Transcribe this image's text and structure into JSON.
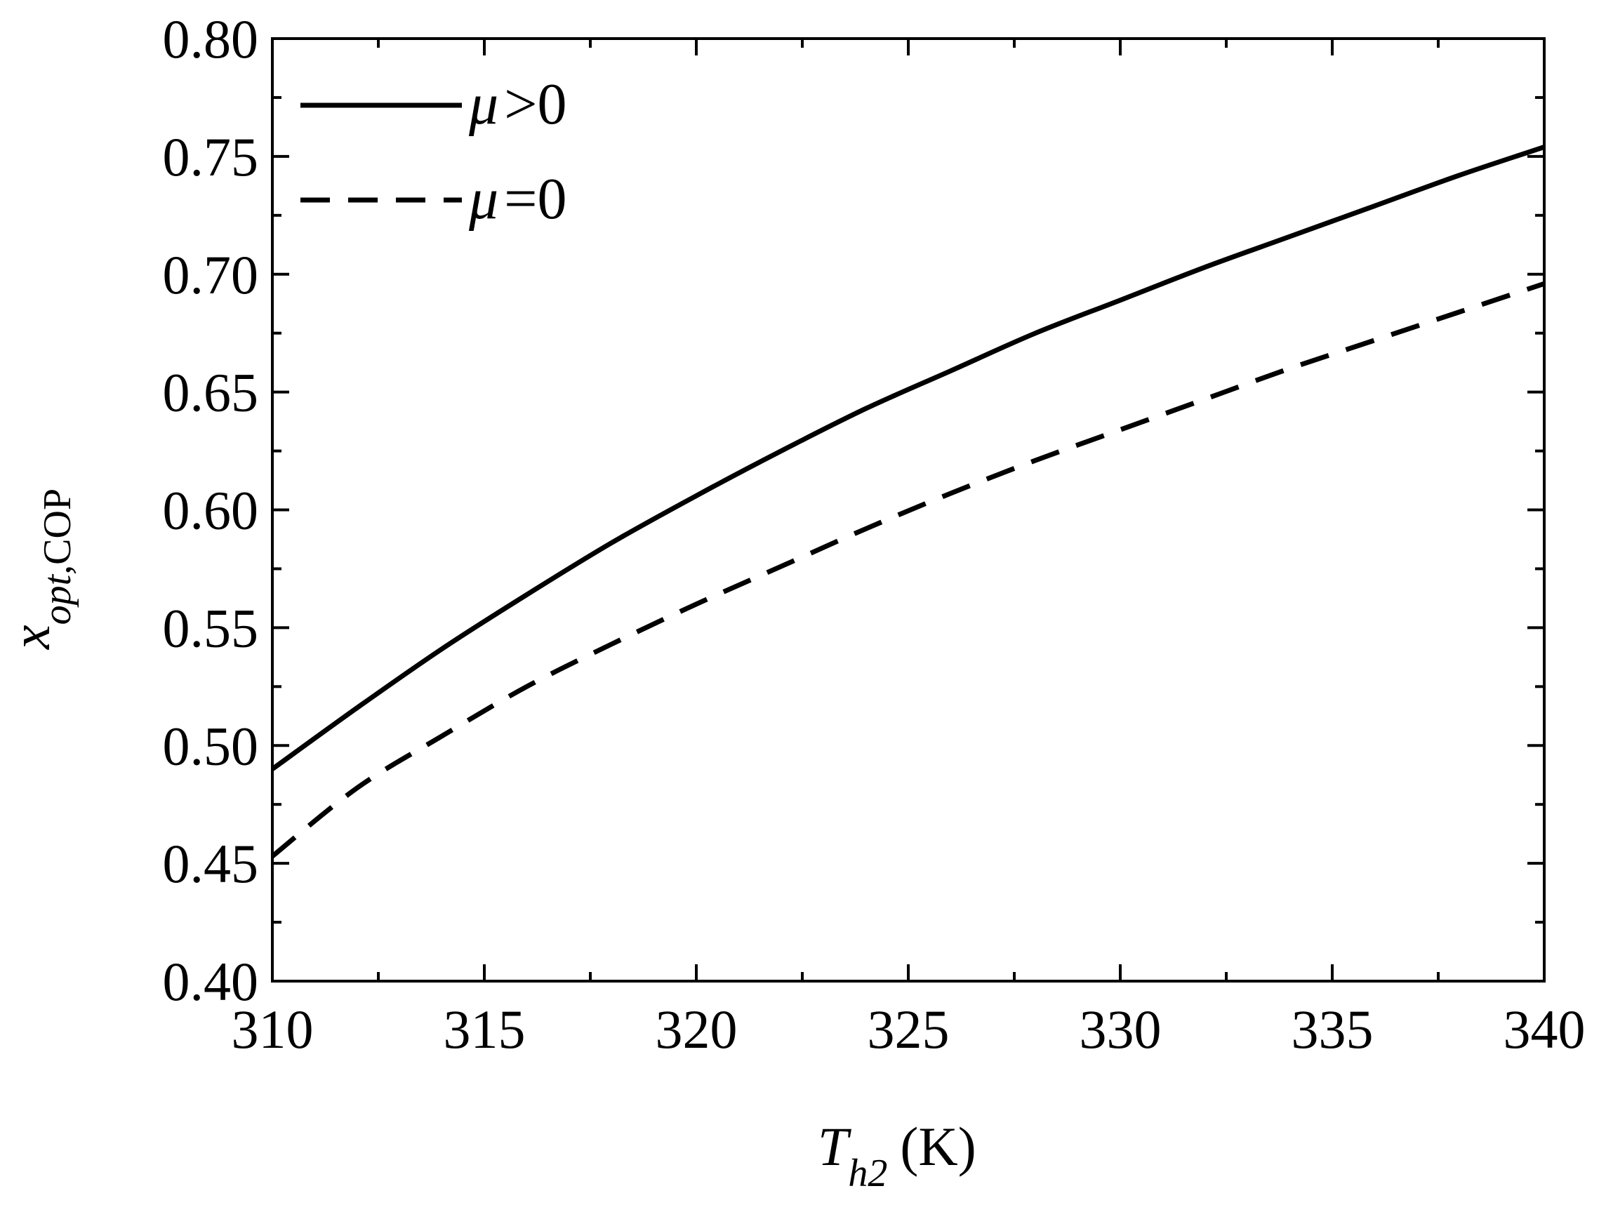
{
  "chart_data": {
    "type": "line",
    "xlabel": {
      "main": "T",
      "sub": "h2",
      "unit": "(K)"
    },
    "ylabel": {
      "main": "x",
      "sub_italic": "opt,",
      "sub_roman": "COP"
    },
    "xlim": [
      310,
      340
    ],
    "ylim": [
      0.4,
      0.8
    ],
    "x_ticks": [
      "310",
      "315",
      "320",
      "325",
      "330",
      "335",
      "340"
    ],
    "y_ticks": [
      "0.40",
      "0.45",
      "0.50",
      "0.55",
      "0.60",
      "0.65",
      "0.70",
      "0.75",
      "0.80"
    ],
    "legend_position": "top-left",
    "series": [
      {
        "name": "μ >0",
        "legend_symbol": "μ",
        "legend_rest": ">0",
        "style": "solid",
        "x": [
          310,
          312,
          314,
          316,
          318,
          320,
          322,
          324,
          326,
          328,
          330,
          332,
          334,
          336,
          338,
          340
        ],
        "y": [
          0.49,
          0.516,
          0.541,
          0.564,
          0.586,
          0.606,
          0.625,
          0.643,
          0.659,
          0.675,
          0.689,
          0.703,
          0.716,
          0.729,
          0.742,
          0.754
        ]
      },
      {
        "name": "μ =0",
        "legend_symbol": "μ",
        "legend_rest": "=0",
        "style": "dashed",
        "x": [
          310,
          312,
          314,
          316,
          318,
          320,
          322,
          324,
          326,
          328,
          330,
          332,
          334,
          336,
          338,
          340
        ],
        "y": [
          0.453,
          0.482,
          0.504,
          0.525,
          0.543,
          0.56,
          0.576,
          0.592,
          0.607,
          0.621,
          0.634,
          0.647,
          0.66,
          0.672,
          0.684,
          0.696
        ]
      }
    ],
    "colors": {
      "line": "#000000",
      "axis": "#000000",
      "background": "#ffffff"
    }
  }
}
